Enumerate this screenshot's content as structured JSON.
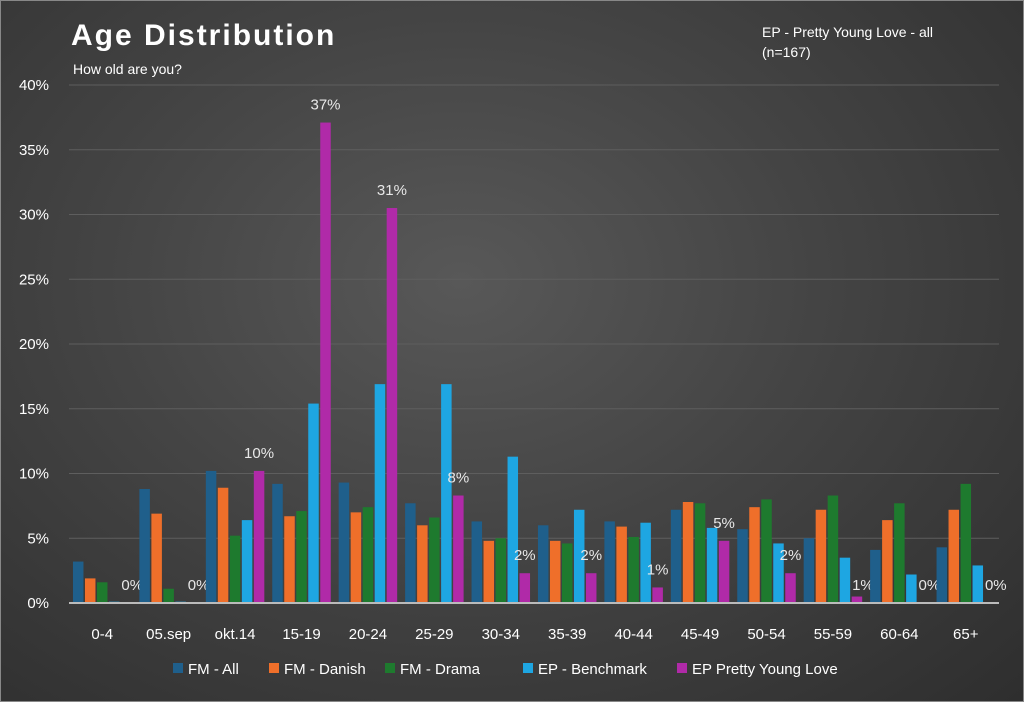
{
  "chart_data": {
    "type": "bar",
    "title": "Age Distribution",
    "subtitle": "How old are you?",
    "annotation": "EP - Pretty Young Love - all\n(n=167)",
    "xlabel": "",
    "ylabel": "",
    "ylim": [
      0,
      40
    ],
    "yticks": [
      "0%",
      "5%",
      "10%",
      "15%",
      "20%",
      "25%",
      "30%",
      "35%",
      "40%"
    ],
    "grid": true,
    "legend": "bottom",
    "categories": [
      "0-4",
      "05.sep",
      "okt.14",
      "15-19",
      "20-24",
      "25-29",
      "30-34",
      "35-39",
      "40-44",
      "45-49",
      "50-54",
      "55-59",
      "60-64",
      "65+"
    ],
    "series": [
      {
        "name": "FM - All",
        "color": "#1f5f8b",
        "values": [
          3.2,
          8.8,
          10.2,
          9.2,
          9.3,
          7.7,
          6.3,
          6.0,
          6.3,
          7.2,
          5.7,
          5.0,
          4.1,
          4.3
        ]
      },
      {
        "name": "FM - Danish",
        "color": "#ef6f2a",
        "values": [
          1.9,
          6.9,
          8.9,
          6.7,
          7.0,
          6.0,
          4.8,
          4.8,
          5.9,
          7.8,
          7.4,
          7.2,
          6.4,
          7.2
        ]
      },
      {
        "name": "FM - Drama",
        "color": "#1e7a2e",
        "values": [
          1.6,
          1.1,
          5.2,
          7.1,
          7.4,
          6.6,
          5.0,
          4.6,
          5.1,
          7.7,
          8.0,
          8.3,
          7.7,
          9.2
        ]
      },
      {
        "name": "EP - Benchmark",
        "color": "#1ea6e2",
        "values": [
          0.1,
          0.1,
          6.4,
          15.4,
          16.9,
          16.9,
          11.3,
          7.2,
          6.2,
          5.8,
          4.6,
          3.5,
          2.2,
          2.9
        ]
      },
      {
        "name": "EP Pretty Young Love",
        "color": "#b02aa8",
        "values": [
          0,
          0,
          10.2,
          37.1,
          30.5,
          8.3,
          2.3,
          2.3,
          1.2,
          4.8,
          2.3,
          0.5,
          0,
          0
        ],
        "data_labels": [
          "0%",
          "0%",
          "10%",
          "37%",
          "31%",
          "8%",
          "2%",
          "2%",
          "1%",
          "5%",
          "2%",
          "1%",
          "0%",
          "0%"
        ]
      }
    ]
  }
}
